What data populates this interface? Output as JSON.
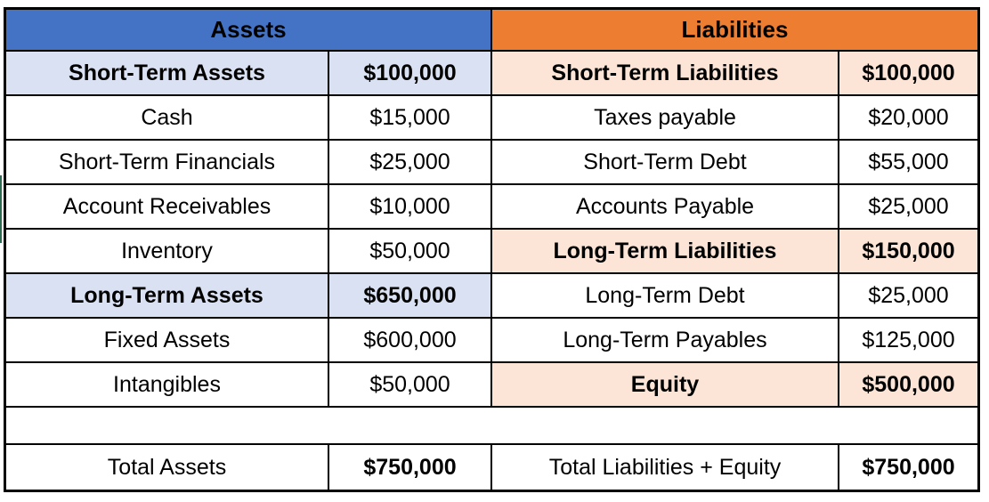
{
  "table": {
    "assets": {
      "header": "Assets",
      "rows": [
        {
          "label": "Short-Term Assets",
          "value": "$100,000",
          "style": "subtotal"
        },
        {
          "label": "Cash",
          "value": "$15,000",
          "style": "item"
        },
        {
          "label": "Short-Term Financials",
          "value": "$25,000",
          "style": "item"
        },
        {
          "label": "Account Receivables",
          "value": "$10,000",
          "style": "item"
        },
        {
          "label": "Inventory",
          "value": "$50,000",
          "style": "item"
        },
        {
          "label": "Long-Term Assets",
          "value": "$650,000",
          "style": "subtotal"
        },
        {
          "label": "Fixed Assets",
          "value": "$600,000",
          "style": "item"
        },
        {
          "label": "Intangibles",
          "value": "$50,000",
          "style": "item"
        }
      ],
      "total": {
        "label": "Total Assets",
        "value": "$750,000"
      }
    },
    "liabilities": {
      "header": "Liabilities",
      "rows": [
        {
          "label": "Short-Term Liabilities",
          "value": "$100,000",
          "style": "subtotal"
        },
        {
          "label": "Taxes payable",
          "value": "$20,000",
          "style": "item"
        },
        {
          "label": "Short-Term Debt",
          "value": "$55,000",
          "style": "item"
        },
        {
          "label": "Accounts Payable",
          "value": "$25,000",
          "style": "item"
        },
        {
          "label": "Long-Term Liabilities",
          "value": "$150,000",
          "style": "subtotal"
        },
        {
          "label": "Long-Term Debt",
          "value": "$25,000",
          "style": "item"
        },
        {
          "label": "Long-Term Payables",
          "value": "$125,000",
          "style": "item"
        },
        {
          "label": "Equity",
          "value": "$500,000",
          "style": "subtotal"
        }
      ],
      "total": {
        "label": "Total Liabilities + Equity",
        "value": "$750,000"
      }
    },
    "colors": {
      "assets_header_bg": "#4472C4",
      "assets_subtotal_bg": "#D9E1F2",
      "liabilities_header_bg": "#ED7D31",
      "liabilities_subtotal_bg": "#FCE4D6",
      "border": "#000000",
      "text": "#000000"
    }
  }
}
